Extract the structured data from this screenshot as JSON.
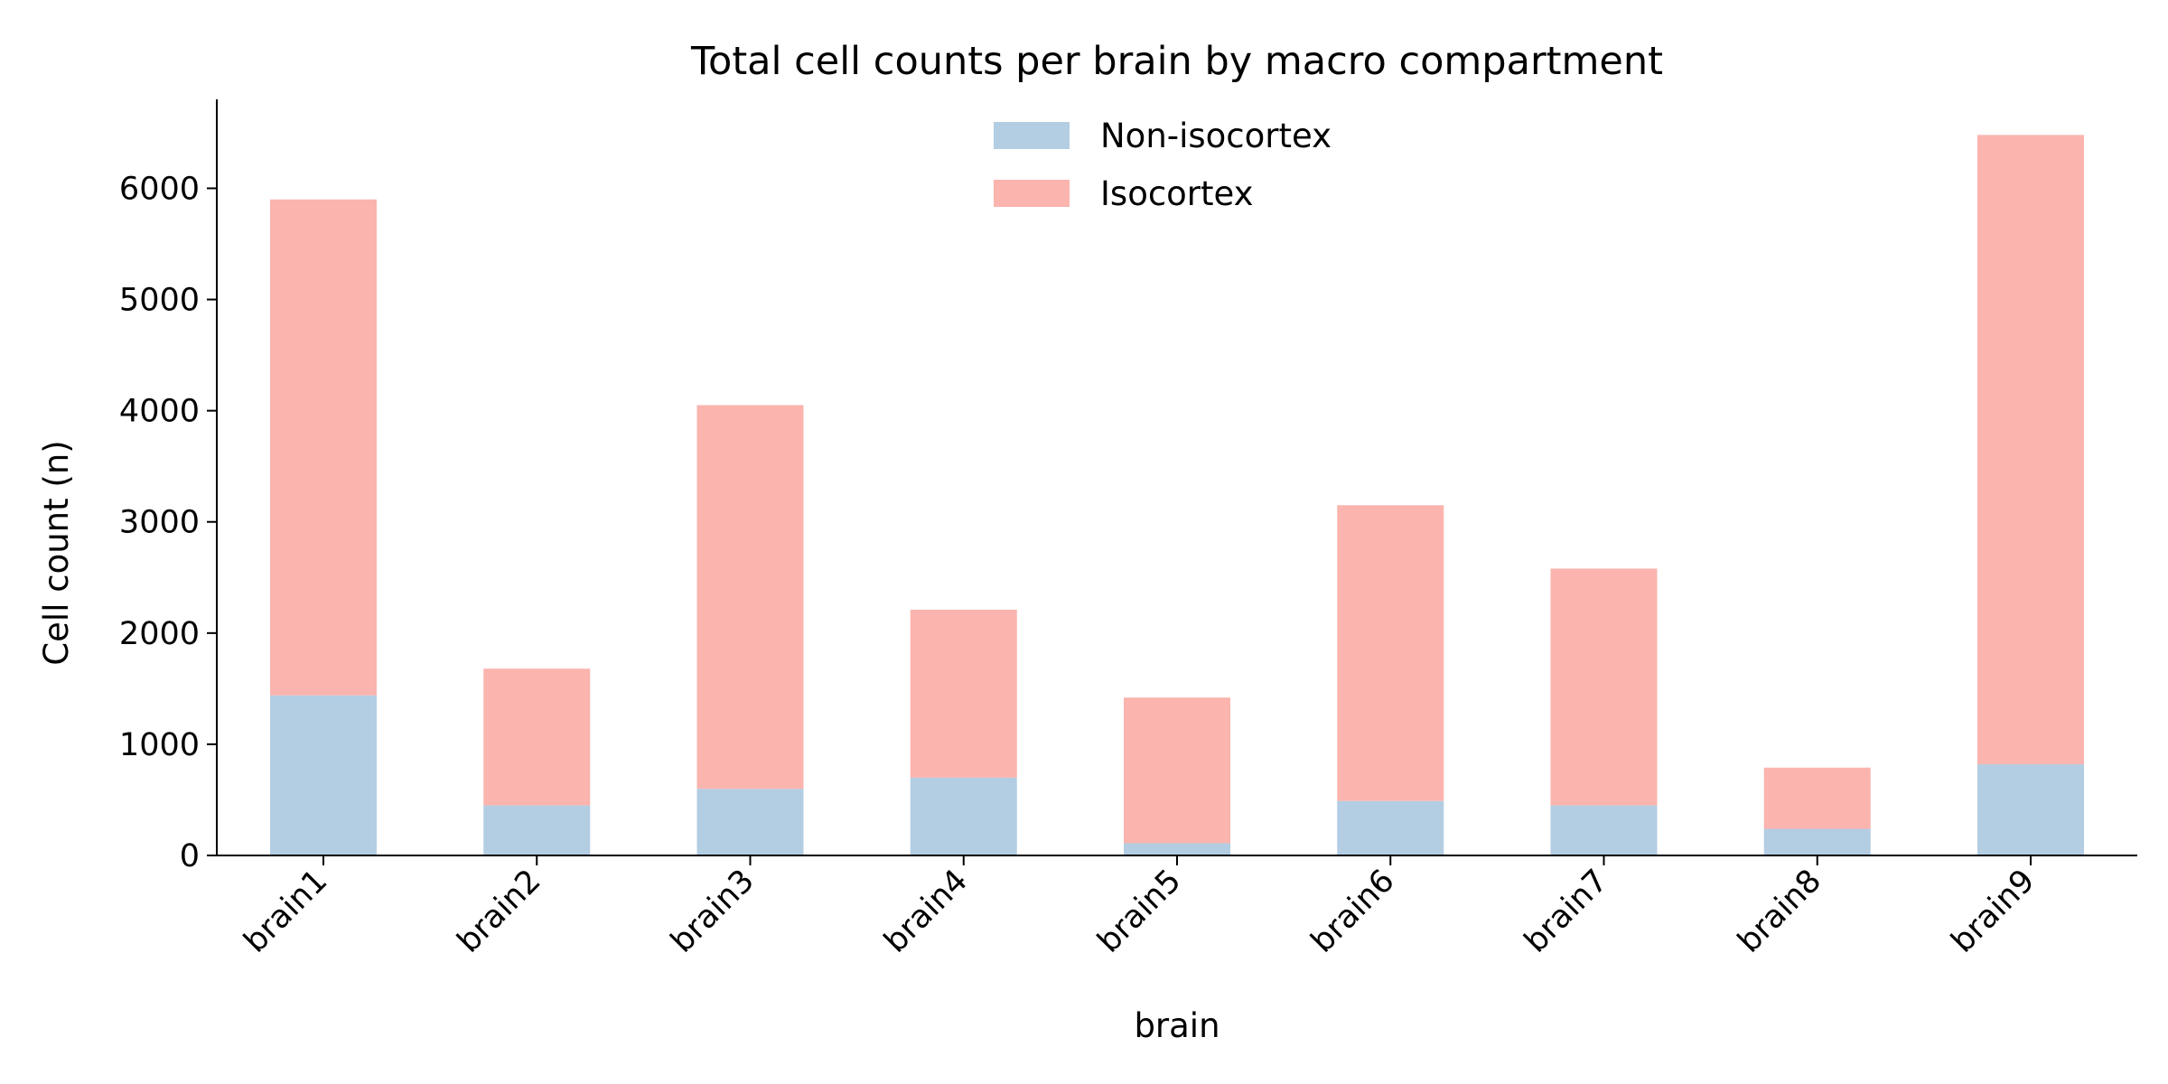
{
  "chart_data": {
    "type": "bar",
    "stacked": true,
    "title": "Total cell counts per brain by macro compartment",
    "xlabel": "brain",
    "ylabel": "Cell count (n)",
    "categories": [
      "brain1",
      "brain2",
      "brain3",
      "brain4",
      "brain5",
      "brain6",
      "brain7",
      "brain8",
      "brain9"
    ],
    "series": [
      {
        "name": "Non-isocortex",
        "color": "#b3cde3",
        "values": [
          1440,
          450,
          600,
          700,
          110,
          490,
          450,
          240,
          820
        ]
      },
      {
        "name": "Isocortex",
        "color": "#fbb4ae",
        "values": [
          4460,
          1230,
          3450,
          1510,
          1310,
          2660,
          2130,
          550,
          5660
        ]
      }
    ],
    "ylim": [
      0,
      6800
    ],
    "yticks": [
      0,
      1000,
      2000,
      3000,
      4000,
      5000,
      6000
    ],
    "grid": false,
    "legend_position": "top-center"
  }
}
